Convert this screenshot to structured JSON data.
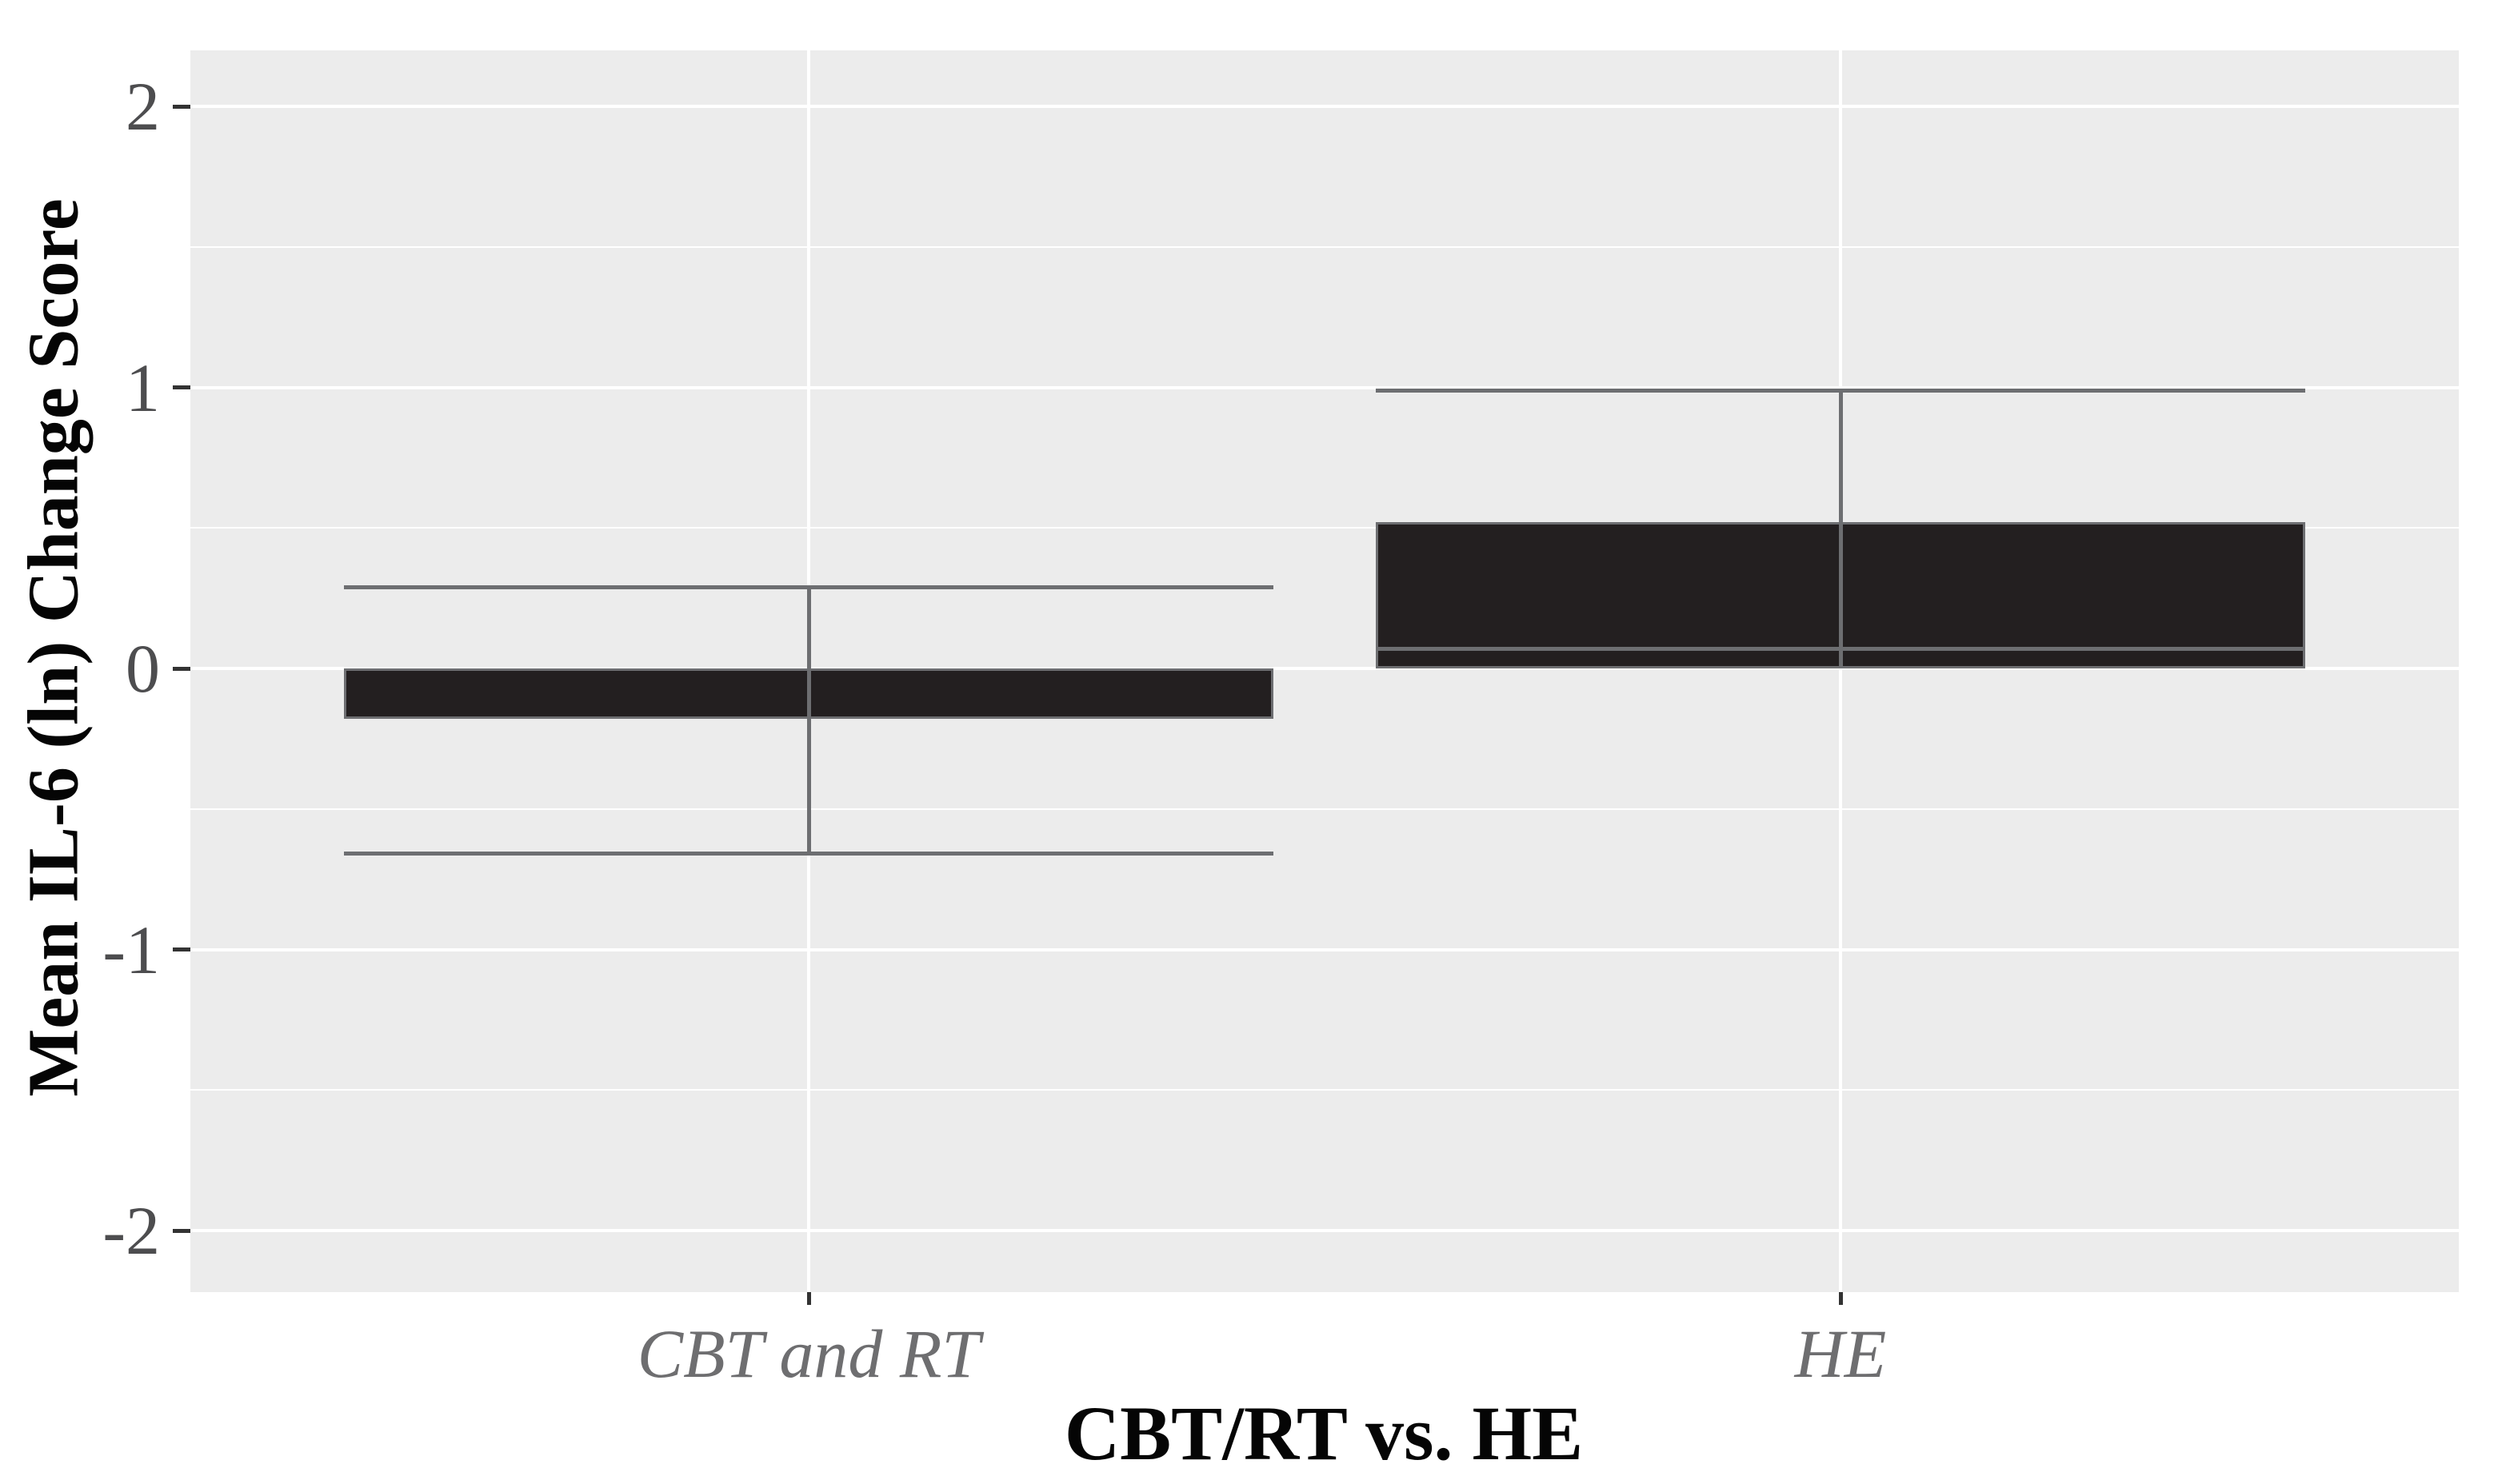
{
  "figure": {
    "background": "#FFFFFF",
    "panel_background": "#ECECEC",
    "gridline_color": "#FFFFFF",
    "box_fill": "#231F20",
    "box_border": "#6D6E71",
    "whisker_color": "#6D6E71",
    "median_color": "#6D6E71",
    "axis_tick_color": "#333333",
    "tick_label_color": "#4D4D4F",
    "category_label_color": "#6E6E70",
    "title_color": "#050505"
  },
  "chart_data": {
    "type": "boxplot",
    "title": "",
    "xlabel": "CBT/RT vs. HE",
    "ylabel": "Mean IL-6 (ln) Change Score",
    "categories": [
      "CBT and RT",
      "HE"
    ],
    "y_ticks": [
      2,
      1,
      0,
      -1,
      -2
    ],
    "y_tick_labels": [
      "2",
      "1",
      "0",
      "-1",
      "-2"
    ],
    "y_minor_ticks": [
      1.5,
      0.5,
      -0.5,
      -1.5
    ],
    "ylim": [
      -2.2,
      2.2
    ],
    "grid": true,
    "legend": false,
    "boxes": [
      {
        "category": "CBT and RT",
        "whisker_low": -0.66,
        "q1": -0.18,
        "median": 0.0,
        "q3": 0.0,
        "whisker_high": 0.29,
        "median_visible": false
      },
      {
        "category": "HE",
        "whisker_low": null,
        "q1": 0.0,
        "median": 0.07,
        "q3": 0.52,
        "whisker_high": 0.99,
        "median_visible": true
      }
    ]
  }
}
